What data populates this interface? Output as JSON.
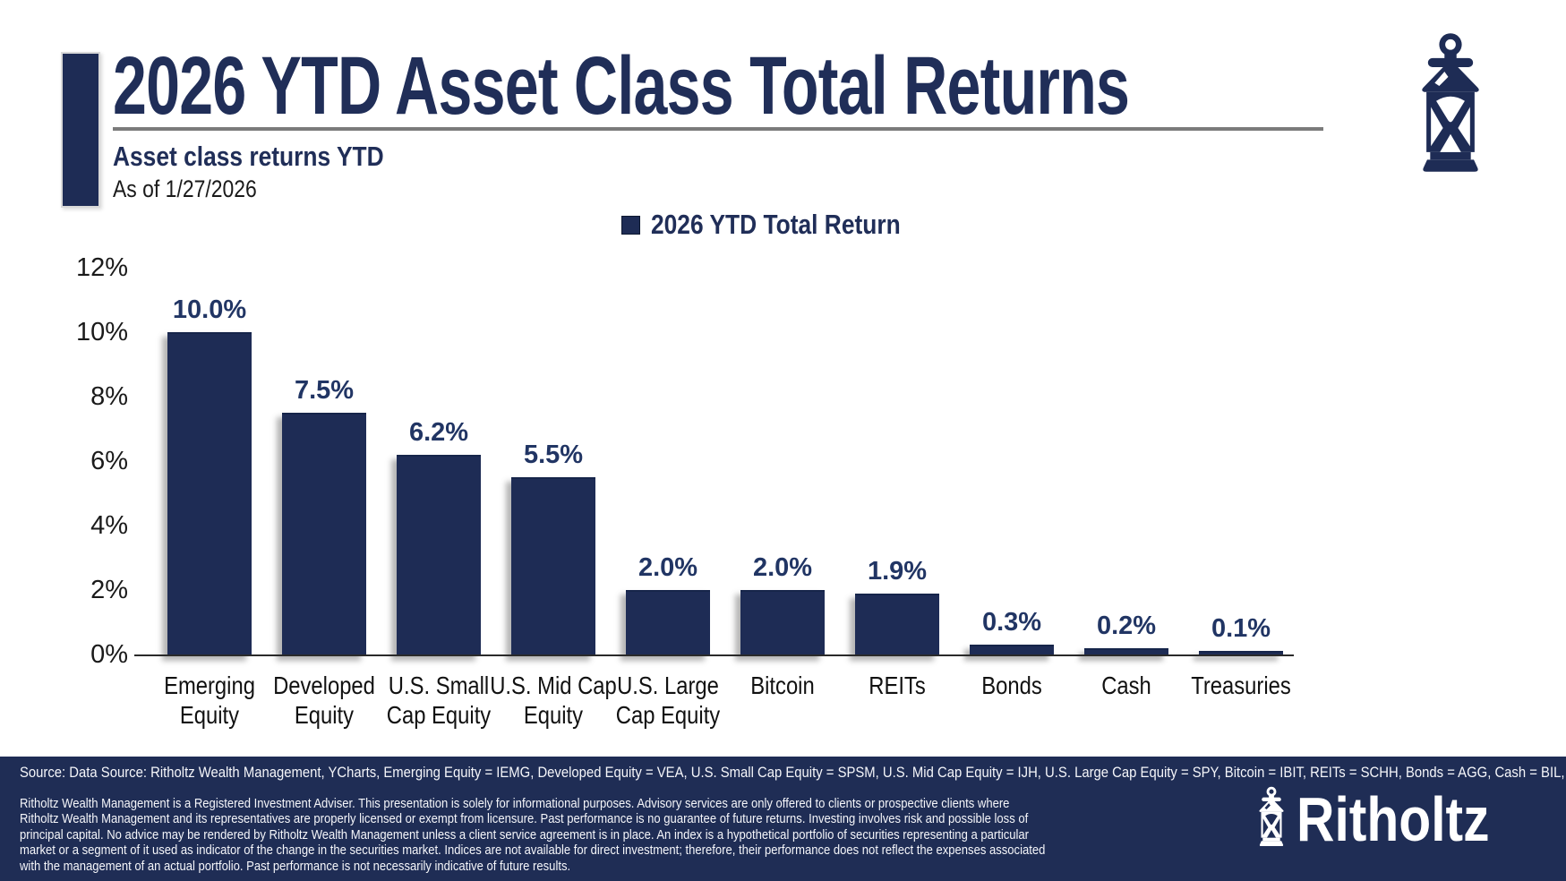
{
  "header": {
    "title": "2026 YTD Asset Class Total Returns",
    "subtitle": "Asset class returns YTD",
    "as_of": "As of 1/27/2026"
  },
  "legend": {
    "label": "2026 YTD Total Return",
    "marker_color": "#1e2c55"
  },
  "chart_data": {
    "type": "bar",
    "title": "2026 YTD Asset Class Total Returns",
    "series_name": "2026 YTD Total Return",
    "categories": [
      "Emerging\nEquity",
      "Developed\nEquity",
      "U.S. Small\nCap Equity",
      "U.S. Mid Cap\nEquity",
      "U.S. Large\nCap Equity",
      "Bitcoin",
      "REITs",
      "Bonds",
      "Cash",
      "Treasuries"
    ],
    "values": [
      10.0,
      7.5,
      6.2,
      5.5,
      2.0,
      2.0,
      1.9,
      0.3,
      0.2,
      0.1
    ],
    "value_labels": [
      "10.0%",
      "7.5%",
      "6.2%",
      "5.5%",
      "2.0%",
      "2.0%",
      "1.9%",
      "0.3%",
      "0.2%",
      "0.1%"
    ],
    "xlabel": "",
    "ylabel": "",
    "ylim": [
      0,
      12
    ],
    "y_ticks": [
      "12%",
      "10%",
      "8%",
      "6%",
      "4%",
      "2%",
      "0%"
    ],
    "grid": false,
    "legend_position": "top",
    "bar_color": "#1e2c55"
  },
  "footer": {
    "source": "Source: Data Source: Ritholtz Wealth Management, YCharts, Emerging Equity = IEMG, Developed Equity = VEA, U.S. Small Cap Equity = SPSM, U.S. Mid Cap Equity = IJH, U.S. Large Cap Equity = SPY, Bitcoin = IBIT, REITs = SCHH, Bonds = AGG, Cash = BIL, Treasuries = GOVT",
    "disclaimer_lines": [
      "Ritholtz Wealth Management is a Registered Investment Adviser. This presentation is solely for informational purposes. Advisory services are only offered to clients or prospective clients where",
      "Ritholtz Wealth Management and its representatives are properly licensed or exempt from licensure. Past performance is no guarantee of future returns. Investing involves risk and possible loss of",
      "principal capital. No advice may be rendered by Ritholtz Wealth Management unless a client service agreement is in place. An index is a hypothetical portfolio of securities representing a particular",
      "market or a segment of it used as indicator of the change in the securities market. Indices are not available for direct investment; therefore, their performance does not reflect the expenses associated",
      "with the management of an actual portfolio. Past performance is not necessarily indicative of future results."
    ],
    "brand": "Ritholtz"
  },
  "icons": {
    "lantern": "lantern-icon"
  }
}
